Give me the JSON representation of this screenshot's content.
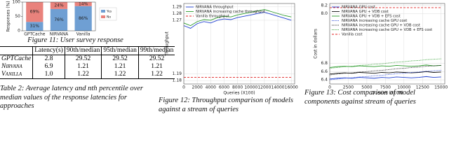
{
  "chart_data": [
    {
      "type": "stacked_bar",
      "caption": "Figure 11: User survey response",
      "ylabel": "Responses (%)",
      "categories": [
        "GPTCache",
        "NIRVANA",
        "Vanilla"
      ],
      "ylim": [
        0,
        100
      ],
      "yticks": [
        0,
        50,
        100
      ],
      "legend": "right",
      "series": [
        {
          "name": "Yes",
          "color": "#6f9fd3",
          "values": [
            31,
            76,
            86
          ],
          "value_labels": [
            "31%",
            "76%",
            "86%"
          ]
        },
        {
          "name": "No",
          "color": "#e9827c",
          "values": [
            69,
            24,
            14
          ],
          "value_labels": [
            "69%",
            "24%",
            "14%"
          ]
        }
      ]
    },
    {
      "type": "line",
      "caption": "Figure 12: Throughput comparison of models against a stream of queries",
      "xlabel": "Queries (X100)",
      "ylabel": "Throughput",
      "grid": true,
      "legend": "upper left",
      "x": [
        0,
        1000,
        2000,
        3000,
        4000,
        5000,
        6000,
        7000,
        8000,
        9000,
        10000,
        11000,
        12000,
        13000,
        14000,
        15000,
        16000
      ],
      "xlim": [
        0,
        16500
      ],
      "xticks": [
        0,
        2000,
        4000,
        6000,
        8000,
        10000,
        12000,
        14000,
        16000
      ],
      "ylim": [
        1.175,
        1.295
      ],
      "yticks": [
        1.18,
        1.19,
        1.27,
        1.28,
        1.29
      ],
      "series": [
        {
          "name": "NIRVANA throughput",
          "color": "#1f3fd0",
          "dash": "solid",
          "values": [
            1.262,
            1.258,
            1.265,
            1.268,
            1.266,
            1.27,
            1.272,
            1.271,
            1.274,
            1.276,
            1.278,
            1.28,
            1.282,
            1.279,
            1.276,
            1.273,
            1.27
          ]
        },
        {
          "name": "NIRVANA increasing cache throughput",
          "color": "#2a9a2a",
          "dash": "solid",
          "values": [
            1.266,
            1.262,
            1.268,
            1.271,
            1.27,
            1.274,
            1.276,
            1.275,
            1.278,
            1.28,
            1.282,
            1.284,
            1.286,
            1.283,
            1.28,
            1.277,
            1.275
          ]
        },
        {
          "name": "Vanilla throughput",
          "color": "#e02020",
          "dash": "dashed",
          "values": [
            1.185,
            1.185,
            1.185,
            1.185,
            1.185,
            1.185,
            1.185,
            1.185,
            1.185,
            1.185,
            1.185,
            1.185,
            1.185,
            1.185,
            1.185,
            1.185,
            1.185
          ]
        }
      ]
    },
    {
      "type": "line",
      "caption": "Figure 13: Cost comparison of model components against stream of queries",
      "xlabel": "Queries (X100)",
      "ylabel": "Cost in dollars",
      "grid": true,
      "legend": "upper left",
      "x": [
        0,
        1000,
        2000,
        3000,
        4000,
        5000,
        6000,
        7000,
        8000,
        9000,
        10000,
        11000,
        12000,
        13000,
        14000,
        15000
      ],
      "xlim": [
        0,
        15500
      ],
      "xticks": [
        0,
        2500,
        5000,
        7500,
        10000,
        12500,
        15000
      ],
      "ylim": [
        6.3,
        8.25
      ],
      "yticks": [
        6.4,
        6.6,
        6.8,
        {
          "value": 8,
          "label": "8.0"
        },
        8.2
      ],
      "series": [
        {
          "name": "NIRVANA GPU cost",
          "color": "#1f3fd0",
          "dash": "solid",
          "values": [
            6.42,
            6.44,
            6.45,
            6.44,
            6.46,
            6.45,
            6.44,
            6.46,
            6.45,
            6.47,
            6.46,
            6.45,
            6.46,
            6.48,
            6.46,
            6.47
          ]
        },
        {
          "name": "NIRVANA GPU + VDB cost",
          "color": "#111111",
          "dash": "solid",
          "values": [
            6.54,
            6.56,
            6.57,
            6.56,
            6.58,
            6.57,
            6.56,
            6.58,
            6.57,
            6.59,
            6.58,
            6.57,
            6.58,
            6.6,
            6.58,
            6.59
          ]
        },
        {
          "name": "NIRVANA GPU + VDB + EFS cost",
          "color": "#2a9a2a",
          "dash": "solid",
          "values": [
            6.7,
            6.72,
            6.73,
            6.72,
            6.74,
            6.73,
            6.72,
            6.74,
            6.73,
            6.75,
            6.74,
            6.73,
            6.74,
            6.76,
            6.74,
            6.75
          ]
        },
        {
          "name": "NIRVANA increasing cache GPU cost",
          "color": "#1f3fd0",
          "dash": "dotted",
          "values": [
            6.4,
            6.42,
            6.44,
            6.45,
            6.47,
            6.48,
            6.5,
            6.51,
            6.53,
            6.55,
            6.56,
            6.58,
            6.59,
            6.61,
            6.62,
            6.63
          ]
        },
        {
          "name": "NIRVANA increasing cache GPU + VDB cost",
          "color": "#111111",
          "dash": "dotted",
          "values": [
            6.52,
            6.54,
            6.56,
            6.57,
            6.59,
            6.6,
            6.62,
            6.63,
            6.65,
            6.67,
            6.68,
            6.7,
            6.71,
            6.73,
            6.74,
            6.75
          ]
        },
        {
          "name": "NIRVANA increasing cache GPU + VDB + EFS cost",
          "color": "#2a9a2a",
          "dash": "dotted",
          "values": [
            6.68,
            6.7,
            6.72,
            6.73,
            6.75,
            6.76,
            6.78,
            6.79,
            6.81,
            6.83,
            6.84,
            6.86,
            6.87,
            6.89,
            6.9,
            6.91
          ]
        },
        {
          "name": "Vanilla cost",
          "color": "#e02020",
          "dash": "dashed",
          "values": [
            8.15,
            8.15,
            8.15,
            8.15,
            8.15,
            8.15,
            8.15,
            8.15,
            8.15,
            8.15,
            8.15,
            8.15,
            8.15,
            8.15,
            8.15,
            8.15
          ]
        }
      ]
    }
  ],
  "table": {
    "caption": "Table 2: Average latency and nth percentile over median values of the response latencies for approaches",
    "header": [
      "Latency(s)",
      "90th/median",
      "95th/median",
      "99th/median"
    ],
    "rows": [
      [
        "GPTCache",
        "2.8",
        "29.52",
        "29.52",
        "29.52"
      ],
      [
        "Nirvana",
        "6.9",
        "1.21",
        "1.21",
        "1.21"
      ],
      [
        "Vanilla",
        "1.0",
        "1.22",
        "1.22",
        "1.22"
      ]
    ]
  }
}
